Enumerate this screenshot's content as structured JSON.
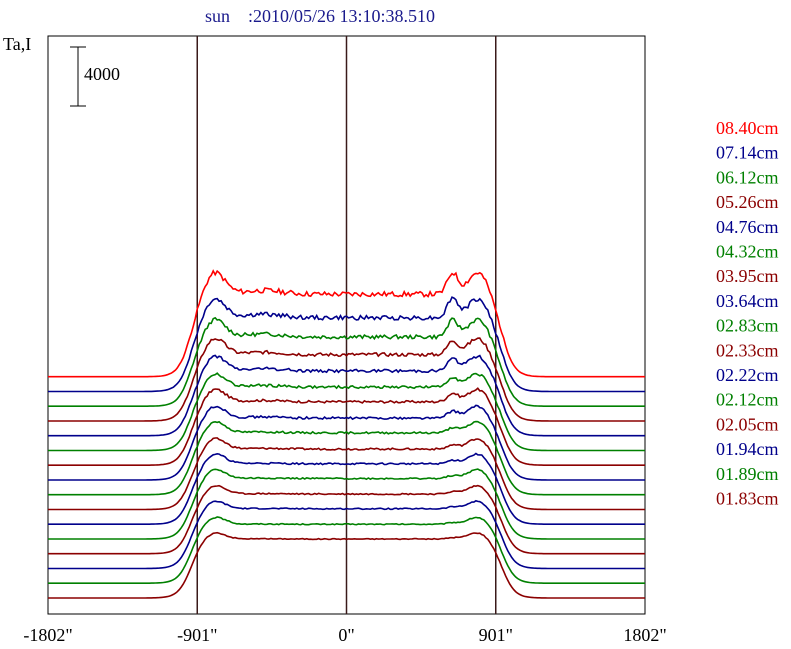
{
  "chart_data": {
    "type": "line",
    "title": "sun    :2010/05/26 13:10:38.510",
    "ylabel": "Ta,I",
    "scale_bar_label": "4000",
    "x_ticks": [
      -1802,
      -901,
      0,
      901,
      1802
    ],
    "x_tick_labels": [
      "-1802\"",
      "-901\"",
      "0\"",
      "901\"",
      "1802\""
    ],
    "xlim": [
      -1802,
      1802
    ],
    "vertical_lines": [
      -901,
      0,
      901
    ],
    "grid": false,
    "legend_position": "right",
    "colors": {
      "red": "#ff0000",
      "blue": "#00008b",
      "green": "#008000",
      "darkred": "#8b0000",
      "frame": "#000000",
      "vline": "#3a1a1a"
    },
    "series": [
      {
        "name": "08.40cm",
        "color": "red",
        "baseline_offset": 15000,
        "disk_level": 5600,
        "limb_peak": 1600,
        "bump_amp": 1400,
        "noise": 350
      },
      {
        "name": "07.14cm",
        "color": "blue",
        "baseline_offset": 14000,
        "disk_level": 5000,
        "limb_peak": 1400,
        "bump_amp": 1300,
        "noise": 300
      },
      {
        "name": "06.12cm",
        "color": "green",
        "baseline_offset": 13000,
        "disk_level": 4700,
        "limb_peak": 1300,
        "bump_amp": 1100,
        "noise": 260
      },
      {
        "name": "05.26cm",
        "color": "darkred",
        "baseline_offset": 12000,
        "disk_level": 4500,
        "limb_peak": 1200,
        "bump_amp": 900,
        "noise": 230
      },
      {
        "name": "04.76cm",
        "color": "blue",
        "baseline_offset": 11000,
        "disk_level": 4400,
        "limb_peak": 1100,
        "bump_amp": 800,
        "noise": 200
      },
      {
        "name": "04.32cm",
        "color": "green",
        "baseline_offset": 10000,
        "disk_level": 4300,
        "limb_peak": 1000,
        "bump_amp": 650,
        "noise": 180
      },
      {
        "name": "03.95cm",
        "color": "darkred",
        "baseline_offset": 9000,
        "disk_level": 4300,
        "limb_peak": 950,
        "bump_amp": 550,
        "noise": 160
      },
      {
        "name": "03.64cm",
        "color": "blue",
        "baseline_offset": 8000,
        "disk_level": 4200,
        "limb_peak": 900,
        "bump_amp": 450,
        "noise": 150
      },
      {
        "name": "02.83cm",
        "color": "green",
        "baseline_offset": 7000,
        "disk_level": 4200,
        "limb_peak": 850,
        "bump_amp": 330,
        "noise": 130
      },
      {
        "name": "02.33cm",
        "color": "darkred",
        "baseline_offset": 6000,
        "disk_level": 4100,
        "limb_peak": 800,
        "bump_amp": 250,
        "noise": 120
      },
      {
        "name": "02.22cm",
        "color": "blue",
        "baseline_offset": 5000,
        "disk_level": 4100,
        "limb_peak": 750,
        "bump_amp": 220,
        "noise": 110
      },
      {
        "name": "02.12cm",
        "color": "green",
        "baseline_offset": 4000,
        "disk_level": 4100,
        "limb_peak": 700,
        "bump_amp": 180,
        "noise": 100
      },
      {
        "name": "02.05cm",
        "color": "darkred",
        "baseline_offset": 3000,
        "disk_level": 4050,
        "limb_peak": 650,
        "bump_amp": 150,
        "noise": 90
      },
      {
        "name": "01.94cm",
        "color": "blue",
        "baseline_offset": 2000,
        "disk_level": 4050,
        "limb_peak": 600,
        "bump_amp": 120,
        "noise": 80
      },
      {
        "name": "01.89cm",
        "color": "green",
        "baseline_offset": 1000,
        "disk_level": 4000,
        "limb_peak": 550,
        "bump_amp": 100,
        "noise": 70
      },
      {
        "name": "01.83cm",
        "color": "darkred",
        "baseline_offset": 0,
        "disk_level": 4000,
        "limb_peak": 500,
        "bump_amp": 80,
        "noise": 60
      }
    ],
    "bump_center": 640,
    "bump_width": 45
  }
}
